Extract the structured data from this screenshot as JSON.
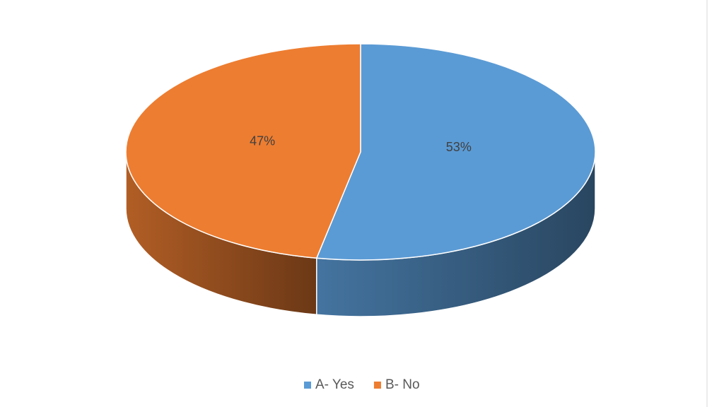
{
  "chart_data": {
    "type": "pie",
    "categories": [
      "A- Yes",
      "B- No"
    ],
    "values": [
      53,
      47
    ],
    "value_labels": [
      "53%",
      "47%"
    ],
    "colors": [
      "#5b9bd5",
      "#ed7d31"
    ],
    "legend": "bottom"
  }
}
